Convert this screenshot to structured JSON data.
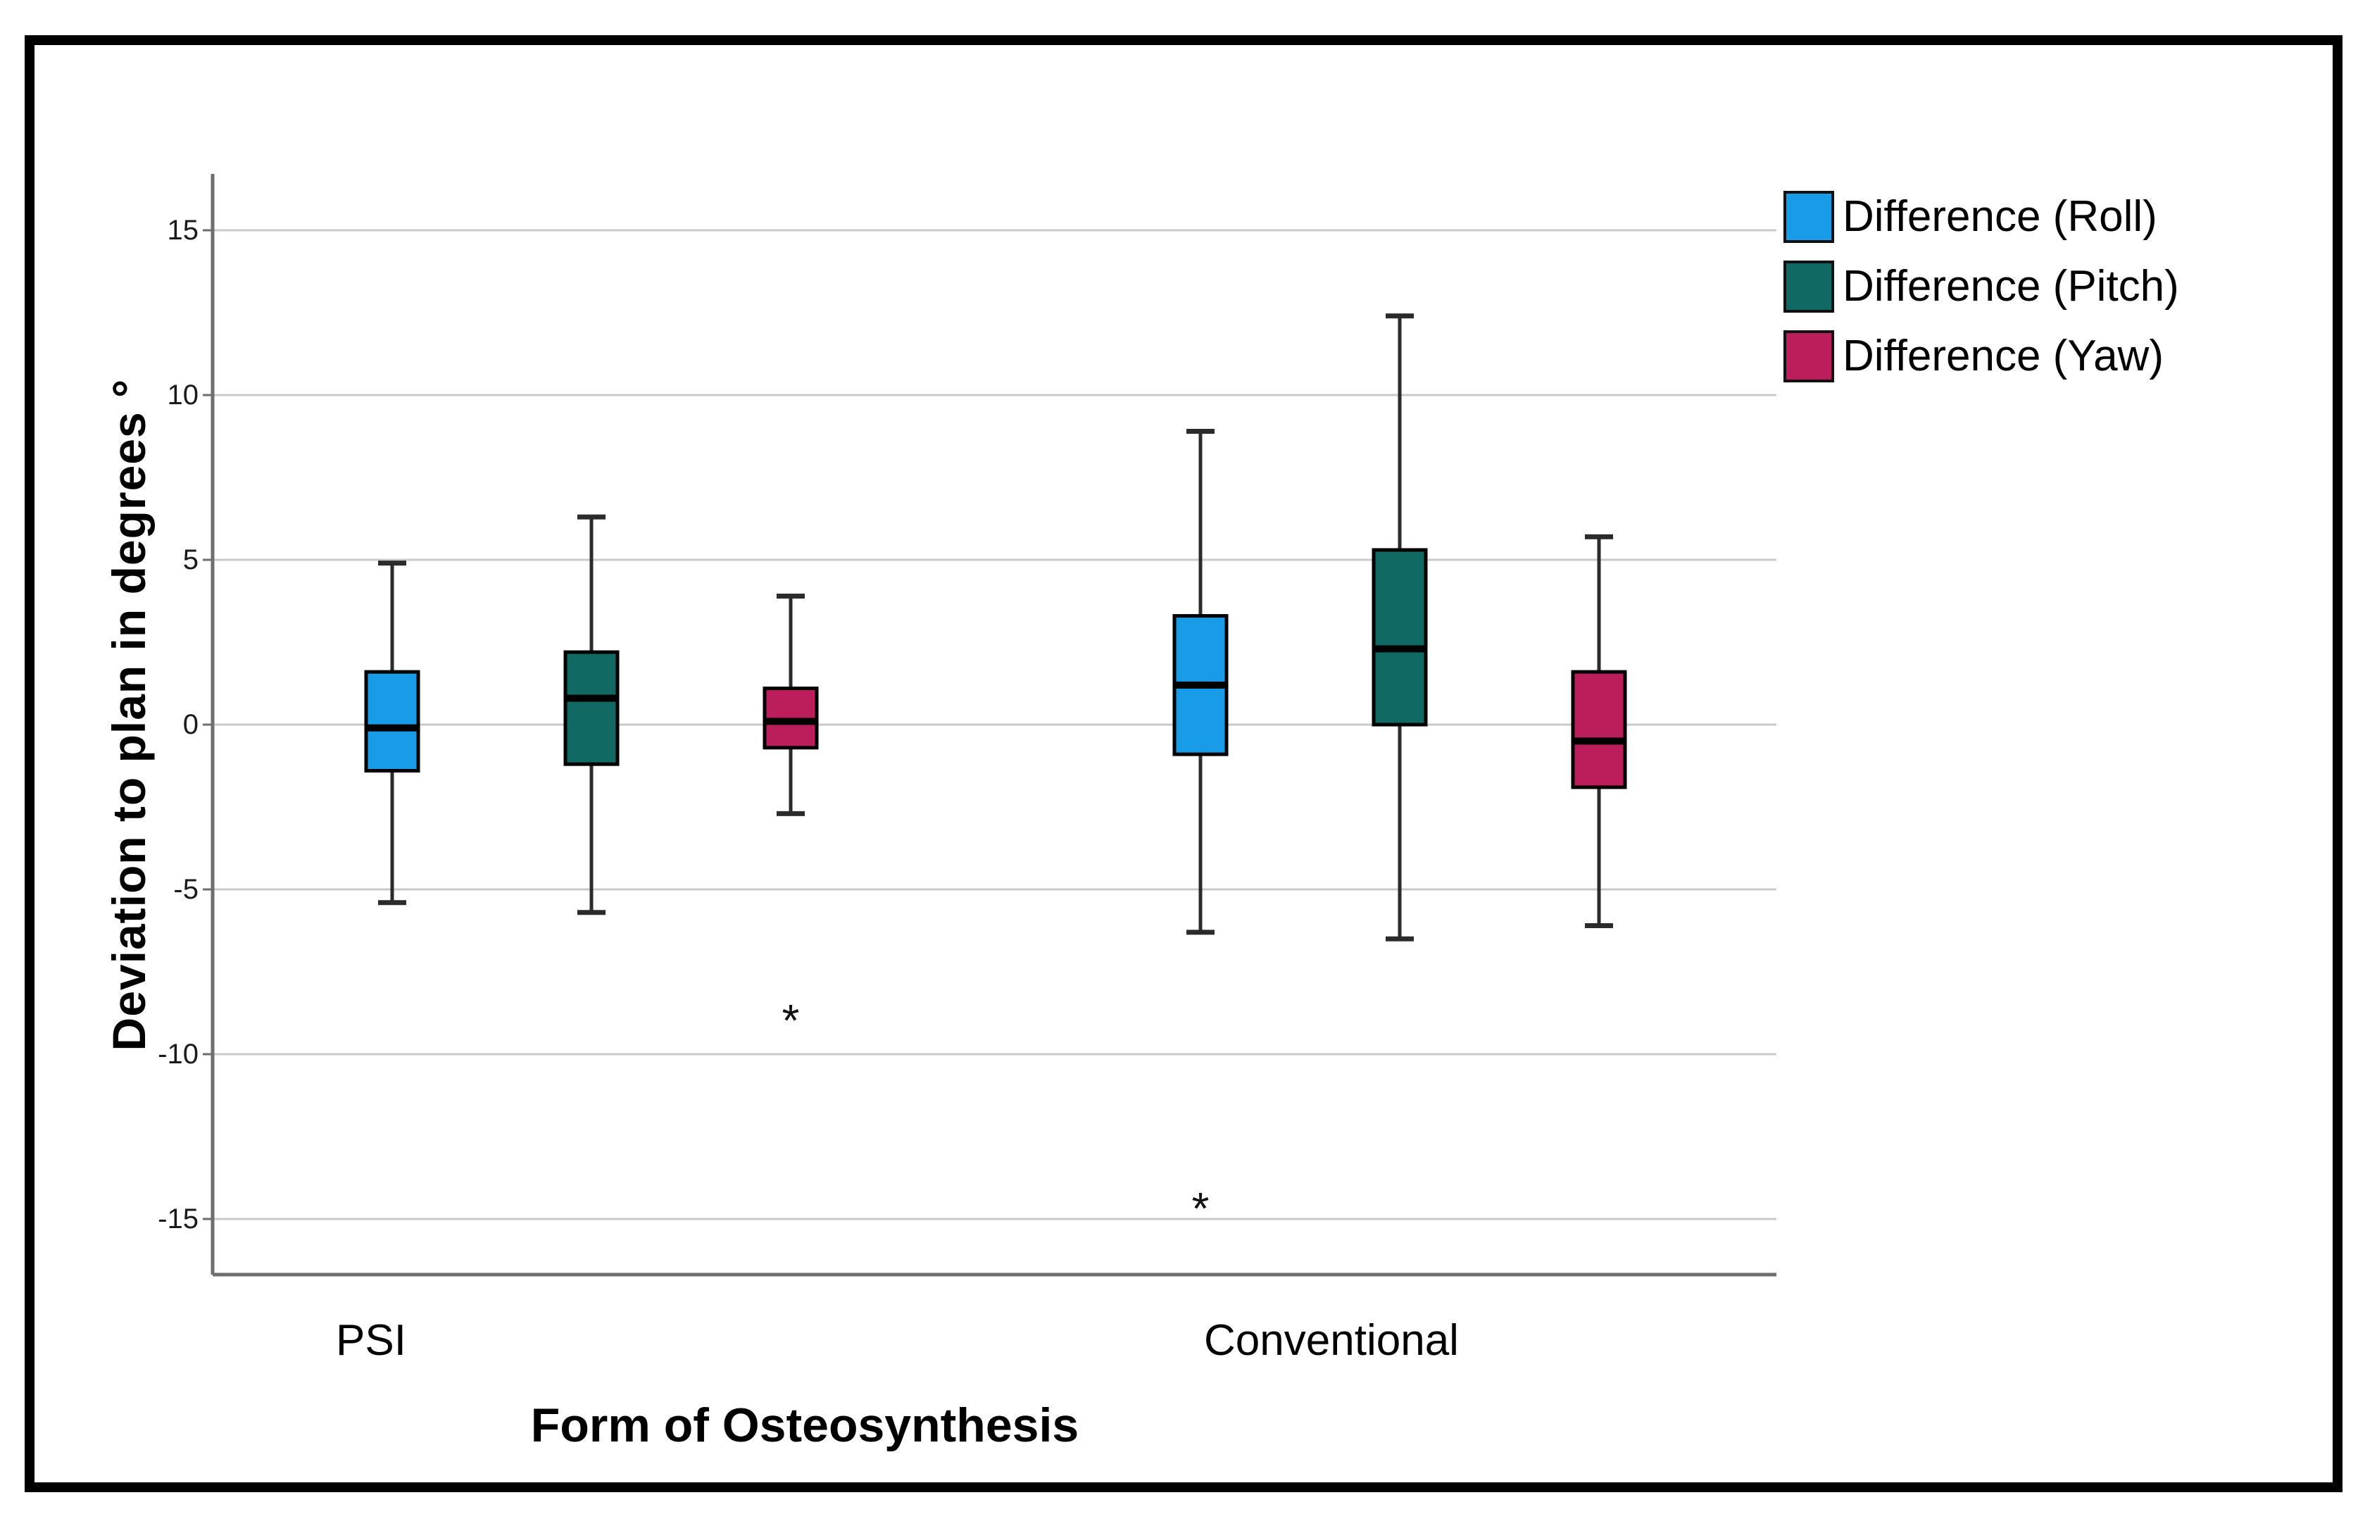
{
  "figure": {
    "background_color": "#ffffff",
    "border_color": "#000000",
    "gridline_color": "#c9c9c9",
    "axis_line_color": "#6e6e6e"
  },
  "chart_data": {
    "type": "boxplot",
    "title": "",
    "xlabel": "Form of Osteosynthesis",
    "ylabel": "Deviation to plan in degrees °",
    "categories": [
      "PSI",
      "Conventional"
    ],
    "yticks": [
      15,
      10,
      5,
      0,
      -5,
      -10,
      -15
    ],
    "ylim": [
      -16.7,
      16.7
    ],
    "grid": "horizontal-only",
    "legend_position": "top-right",
    "outlier_marker": "*",
    "series": [
      {
        "name": "Difference (Roll)",
        "color": "#199CE8",
        "boxes": [
          {
            "category": "PSI",
            "whisker_low": -5.4,
            "q1": -1.4,
            "median": -0.1,
            "q3": 1.6,
            "whisker_high": 4.9,
            "outliers": []
          },
          {
            "category": "Conventional",
            "whisker_low": -6.3,
            "q1": -0.9,
            "median": 1.2,
            "q3": 3.3,
            "whisker_high": 8.9,
            "outliers": [
              -14.3
            ]
          }
        ]
      },
      {
        "name": "Difference (Pitch)",
        "color": "#116964",
        "boxes": [
          {
            "category": "PSI",
            "whisker_low": -5.7,
            "q1": -1.2,
            "median": 0.8,
            "q3": 2.2,
            "whisker_high": 6.3,
            "outliers": []
          },
          {
            "category": "Conventional",
            "whisker_low": -6.5,
            "q1": 0.0,
            "median": 2.3,
            "q3": 5.3,
            "whisker_high": 12.4,
            "outliers": []
          }
        ]
      },
      {
        "name": "Difference (Yaw)",
        "color": "#BC1E5C",
        "boxes": [
          {
            "category": "PSI",
            "whisker_low": -2.7,
            "q1": -0.7,
            "median": 0.1,
            "q3": 1.1,
            "whisker_high": 3.9,
            "outliers": [
              -8.6
            ]
          },
          {
            "category": "Conventional",
            "whisker_low": -6.1,
            "q1": -1.9,
            "median": -0.5,
            "q3": 1.6,
            "whisker_high": 5.7,
            "outliers": []
          }
        ]
      }
    ]
  }
}
